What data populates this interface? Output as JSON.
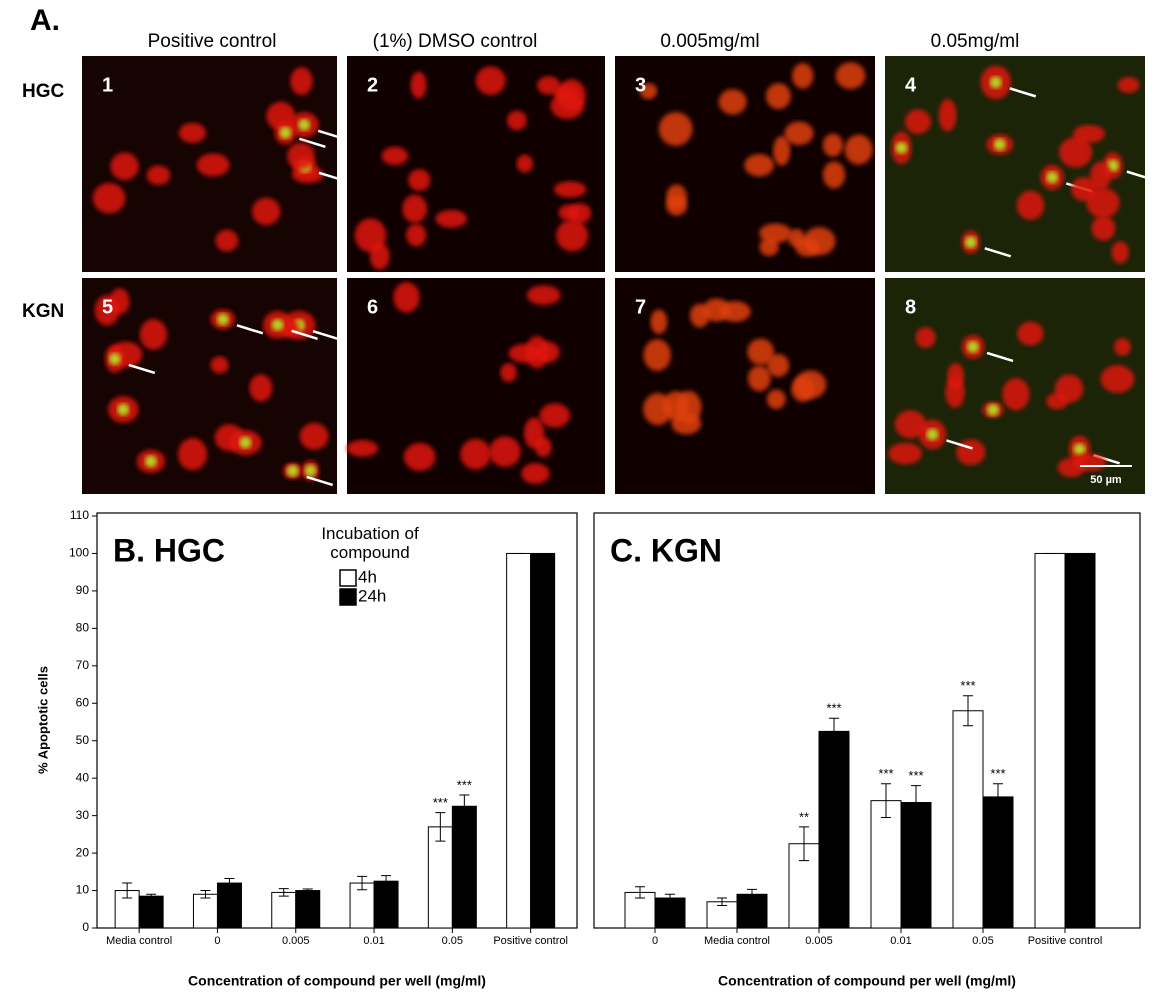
{
  "panel_a": {
    "label": "A.",
    "columns": [
      "Positive control",
      "(1%) DMSO control",
      "0.005mg/ml",
      "0.05mg/ml"
    ],
    "rows": [
      "HGC",
      "KGN"
    ],
    "image_numbers": [
      "1",
      "2",
      "3",
      "4",
      "5",
      "6",
      "7",
      "8"
    ],
    "scale_bar": "50 µm"
  },
  "chart_data": [
    {
      "type": "bar",
      "title": "B. HGC",
      "y_label": "% Apoptotic cells",
      "x_label": "Concentration of compound per well (mg/ml)",
      "legend_title": "Incubation of compound",
      "categories": [
        "Media control",
        "0",
        "0.005",
        "0.01",
        "0.05",
        "Positive control"
      ],
      "series": [
        {
          "name": "4h",
          "color": "#ffffff",
          "values": [
            10,
            9,
            9.5,
            12,
            27,
            100
          ],
          "errors": [
            2,
            1,
            1,
            1.8,
            3.8,
            0
          ],
          "significance": [
            null,
            null,
            null,
            null,
            "***",
            null
          ]
        },
        {
          "name": "24h",
          "color": "#000000",
          "values": [
            8.5,
            12,
            10,
            12.5,
            32.5,
            100
          ],
          "errors": [
            0.5,
            1.2,
            0.4,
            1.5,
            3,
            0
          ],
          "significance": [
            null,
            null,
            null,
            null,
            "***",
            null
          ]
        }
      ],
      "ylim": [
        0,
        110
      ],
      "yticks": [
        0,
        10,
        20,
        30,
        40,
        50,
        60,
        70,
        80,
        90,
        100,
        110
      ]
    },
    {
      "type": "bar",
      "title": "C. KGN",
      "x_label": "Concentration of compound per well (mg/ml)",
      "categories": [
        "0",
        "Media control",
        "0.005",
        "0.01",
        "0.05",
        "Positive control"
      ],
      "series": [
        {
          "color": "#ffffff",
          "values": [
            9.5,
            7,
            22.5,
            34,
            58,
            100
          ],
          "errors": [
            1.5,
            1,
            4.5,
            4.5,
            4,
            0
          ],
          "significance": [
            null,
            null,
            "**",
            "***",
            "***",
            null
          ]
        },
        {
          "color": "#000000",
          "values": [
            8,
            9,
            52.5,
            33.5,
            35,
            100
          ],
          "errors": [
            1,
            1.3,
            3.5,
            4.5,
            3.5,
            0
          ],
          "significance": [
            null,
            null,
            "***",
            "***",
            "***",
            null
          ]
        }
      ],
      "ylim": [
        0,
        110
      ]
    }
  ]
}
